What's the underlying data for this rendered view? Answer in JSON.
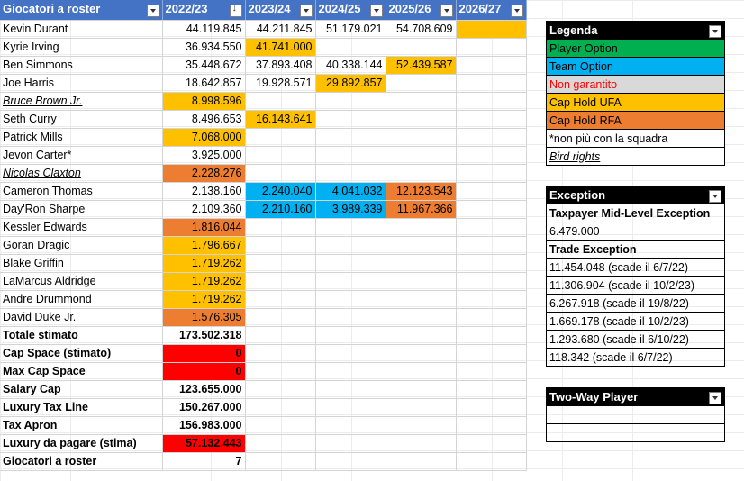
{
  "roster": {
    "headers": [
      "Giocatori a roster",
      "2022/23",
      "2023/24",
      "2024/25",
      "2025/26",
      "2026/27"
    ],
    "rows": [
      {
        "name": "Kevin Durant",
        "style": "",
        "cells": [
          {
            "v": "44.119.845",
            "bg": ""
          },
          {
            "v": "44.211.845",
            "bg": ""
          },
          {
            "v": "51.179.021",
            "bg": ""
          },
          {
            "v": "54.708.609",
            "bg": ""
          },
          {
            "v": "",
            "bg": "#ffc000"
          }
        ]
      },
      {
        "name": "Kyrie Irving",
        "style": "",
        "cells": [
          {
            "v": "36.934.550",
            "bg": ""
          },
          {
            "v": "41.741.000",
            "bg": "#ffc000"
          },
          {
            "v": "",
            "bg": ""
          },
          {
            "v": "",
            "bg": ""
          },
          {
            "v": "",
            "bg": ""
          }
        ]
      },
      {
        "name": "Ben Simmons",
        "style": "",
        "cells": [
          {
            "v": "35.448.672",
            "bg": ""
          },
          {
            "v": "37.893.408",
            "bg": ""
          },
          {
            "v": "40.338.144",
            "bg": ""
          },
          {
            "v": "52.439.587",
            "bg": "#ffc000"
          },
          {
            "v": "",
            "bg": ""
          }
        ]
      },
      {
        "name": "Joe Harris",
        "style": "",
        "cells": [
          {
            "v": "18.642.857",
            "bg": ""
          },
          {
            "v": "19.928.571",
            "bg": ""
          },
          {
            "v": "29.892.857",
            "bg": "#ffc000"
          },
          {
            "v": "",
            "bg": ""
          },
          {
            "v": "",
            "bg": ""
          }
        ]
      },
      {
        "name": "Bruce Brown Jr.",
        "style": "italic-u",
        "cells": [
          {
            "v": "8.998.596",
            "bg": "#ffc000"
          },
          {
            "v": "",
            "bg": ""
          },
          {
            "v": "",
            "bg": ""
          },
          {
            "v": "",
            "bg": ""
          },
          {
            "v": "",
            "bg": ""
          }
        ]
      },
      {
        "name": "Seth Curry",
        "style": "",
        "cells": [
          {
            "v": "8.496.653",
            "bg": ""
          },
          {
            "v": "16.143.641",
            "bg": "#ffc000"
          },
          {
            "v": "",
            "bg": ""
          },
          {
            "v": "",
            "bg": ""
          },
          {
            "v": "",
            "bg": ""
          }
        ]
      },
      {
        "name": "Patrick Mills",
        "style": "",
        "cells": [
          {
            "v": "7.068.000",
            "bg": "#ffc000"
          },
          {
            "v": "",
            "bg": ""
          },
          {
            "v": "",
            "bg": ""
          },
          {
            "v": "",
            "bg": ""
          },
          {
            "v": "",
            "bg": ""
          }
        ]
      },
      {
        "name": "Jevon Carter*",
        "style": "",
        "cells": [
          {
            "v": "3.925.000",
            "bg": ""
          },
          {
            "v": "",
            "bg": ""
          },
          {
            "v": "",
            "bg": ""
          },
          {
            "v": "",
            "bg": ""
          },
          {
            "v": "",
            "bg": ""
          }
        ]
      },
      {
        "name": "Nicolas Claxton",
        "style": "italic-u",
        "cells": [
          {
            "v": "2.228.276",
            "bg": "#ed7d31"
          },
          {
            "v": "",
            "bg": ""
          },
          {
            "v": "",
            "bg": ""
          },
          {
            "v": "",
            "bg": ""
          },
          {
            "v": "",
            "bg": ""
          }
        ]
      },
      {
        "name": "Cameron Thomas",
        "style": "",
        "cells": [
          {
            "v": "2.138.160",
            "bg": ""
          },
          {
            "v": "2.240.040",
            "bg": "#00b0f0"
          },
          {
            "v": "4.041.032",
            "bg": "#00b0f0"
          },
          {
            "v": "12.123.543",
            "bg": "#ed7d31"
          },
          {
            "v": "",
            "bg": ""
          }
        ]
      },
      {
        "name": "Day'Ron Sharpe",
        "style": "",
        "cells": [
          {
            "v": "2.109.360",
            "bg": ""
          },
          {
            "v": "2.210.160",
            "bg": "#00b0f0"
          },
          {
            "v": "3.989.339",
            "bg": "#00b0f0"
          },
          {
            "v": "11.967.366",
            "bg": "#ed7d31"
          },
          {
            "v": "",
            "bg": ""
          }
        ]
      },
      {
        "name": "Kessler Edwards",
        "style": "",
        "cells": [
          {
            "v": "1.816.044",
            "bg": "#ed7d31"
          },
          {
            "v": "",
            "bg": ""
          },
          {
            "v": "",
            "bg": ""
          },
          {
            "v": "",
            "bg": ""
          },
          {
            "v": "",
            "bg": ""
          }
        ]
      },
      {
        "name": "Goran Dragic",
        "style": "",
        "cells": [
          {
            "v": "1.796.667",
            "bg": "#ffc000"
          },
          {
            "v": "",
            "bg": ""
          },
          {
            "v": "",
            "bg": ""
          },
          {
            "v": "",
            "bg": ""
          },
          {
            "v": "",
            "bg": ""
          }
        ]
      },
      {
        "name": "Blake Griffin",
        "style": "",
        "cells": [
          {
            "v": "1.719.262",
            "bg": "#ffc000"
          },
          {
            "v": "",
            "bg": ""
          },
          {
            "v": "",
            "bg": ""
          },
          {
            "v": "",
            "bg": ""
          },
          {
            "v": "",
            "bg": ""
          }
        ]
      },
      {
        "name": "LaMarcus Aldridge",
        "style": "",
        "cells": [
          {
            "v": "1.719.262",
            "bg": "#ffc000"
          },
          {
            "v": "",
            "bg": ""
          },
          {
            "v": "",
            "bg": ""
          },
          {
            "v": "",
            "bg": ""
          },
          {
            "v": "",
            "bg": ""
          }
        ]
      },
      {
        "name": "Andre Drummond",
        "style": "",
        "cells": [
          {
            "v": "1.719.262",
            "bg": "#ffc000"
          },
          {
            "v": "",
            "bg": ""
          },
          {
            "v": "",
            "bg": ""
          },
          {
            "v": "",
            "bg": ""
          },
          {
            "v": "",
            "bg": ""
          }
        ]
      },
      {
        "name": "David Duke Jr.",
        "style": "",
        "cells": [
          {
            "v": "1.576.305",
            "bg": "#ed7d31"
          },
          {
            "v": "",
            "bg": ""
          },
          {
            "v": "",
            "bg": ""
          },
          {
            "v": "",
            "bg": ""
          },
          {
            "v": "",
            "bg": ""
          }
        ]
      }
    ],
    "totals": [
      {
        "label": "Totale stimato",
        "value": "173.502.318",
        "bg": ""
      },
      {
        "label": "Cap Space (stimato)",
        "value": "0",
        "bg": "#ff0000"
      },
      {
        "label": "Max Cap Space",
        "value": "0",
        "bg": "#ff0000"
      },
      {
        "label": "Salary Cap",
        "value": "123.655.000",
        "bg": ""
      },
      {
        "label": "Luxury Tax Line",
        "value": "150.267.000",
        "bg": ""
      },
      {
        "label": "Tax Apron",
        "value": "156.983.000",
        "bg": ""
      },
      {
        "label": "Luxury da pagare (stima)",
        "value": "57.132.443",
        "bg": "#ff0000"
      },
      {
        "label": "Giocatori a roster",
        "value": "7",
        "bg": ""
      }
    ]
  },
  "legenda": {
    "title": "Legenda",
    "items": [
      {
        "label": "Player Option",
        "bg": "#00b050",
        "color": "#000000",
        "style": ""
      },
      {
        "label": "Team Option",
        "bg": "#00b0f0",
        "color": "#000000",
        "style": ""
      },
      {
        "label": "Non garantito",
        "bg": "#d9d9d9",
        "color": "#ff0000",
        "style": ""
      },
      {
        "label": "Cap Hold UFA",
        "bg": "#ffc000",
        "color": "#000000",
        "style": ""
      },
      {
        "label": "Cap Hold RFA",
        "bg": "#ed7d31",
        "color": "#000000",
        "style": ""
      },
      {
        "label": "*non più con la squadra",
        "bg": "#ffffff",
        "color": "#000000",
        "style": ""
      },
      {
        "label": "Bird rights",
        "bg": "#ffffff",
        "color": "#000000",
        "style": "italic-u"
      }
    ]
  },
  "exception": {
    "title": "Exception",
    "items": [
      {
        "label": "Taxpayer Mid-Level Exception",
        "bold": true
      },
      {
        "label": "6.479.000",
        "bold": false
      },
      {
        "label": "Trade Exception",
        "bold": true
      },
      {
        "label": "11.454.048 (scade il 6/7/22)",
        "bold": false
      },
      {
        "label": "11.306.904 (scade il 10/2/23)",
        "bold": false
      },
      {
        "label": "6.267.918 (scade il 19/8/22)",
        "bold": false
      },
      {
        "label": "1.669.178 (scade il 10/2/23)",
        "bold": false
      },
      {
        "label": "1.293.680 (scade il 6/10/22)",
        "bold": false
      },
      {
        "label": "118.342 (scade il 6/7/22)",
        "bold": false
      }
    ]
  },
  "twoway": {
    "title": "Two-Way Player",
    "items": [
      "",
      ""
    ]
  }
}
